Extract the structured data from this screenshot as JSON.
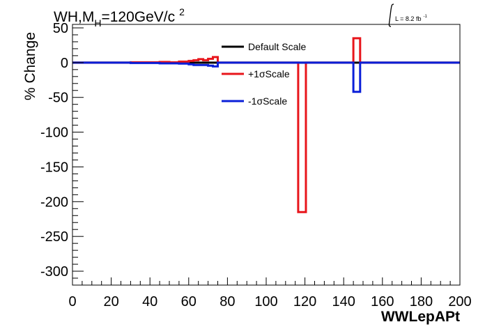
{
  "chart_data": {
    "type": "line",
    "title": "WH,M",
    "title_sub": "H",
    "title_tail": "=120GeV/c",
    "title_sup": "2",
    "lumi_label": "L = 8.2 fb",
    "lumi_sup": "-1",
    "xlabel": "WWLepAPt",
    "ylabel": "% Change",
    "xlim": [
      0,
      200
    ],
    "ylim": [
      -320,
      55
    ],
    "x_ticks": [
      0,
      20,
      40,
      60,
      80,
      100,
      120,
      140,
      160,
      180,
      200
    ],
    "y_ticks": [
      50,
      0,
      -50,
      -100,
      -150,
      -200,
      -250,
      -300
    ],
    "grid": false,
    "legend_position": "top-center",
    "series": [
      {
        "name": "Default Scale",
        "color": "#000000",
        "points": [
          [
            0,
            0
          ],
          [
            200,
            0
          ]
        ]
      },
      {
        "name": "+1σScale",
        "color": "#e8151b",
        "points": [
          [
            0,
            0
          ],
          [
            30,
            0
          ],
          [
            30,
            0.5
          ],
          [
            45,
            0.5
          ],
          [
            45,
            1
          ],
          [
            50,
            1
          ],
          [
            50,
            0.5
          ],
          [
            55,
            0.5
          ],
          [
            55,
            1.5
          ],
          [
            60,
            1.5
          ],
          [
            60,
            2.5
          ],
          [
            62.5,
            2.5
          ],
          [
            62.5,
            3.5
          ],
          [
            65,
            3.5
          ],
          [
            65,
            5
          ],
          [
            67.5,
            5
          ],
          [
            67.5,
            3.5
          ],
          [
            70,
            3.5
          ],
          [
            70,
            5.5
          ],
          [
            72.5,
            5.5
          ],
          [
            72.5,
            8
          ],
          [
            75,
            8
          ],
          [
            75,
            0
          ],
          [
            116.5,
            0
          ],
          [
            116.5,
            -215
          ],
          [
            120.5,
            -215
          ],
          [
            120.5,
            0
          ],
          [
            137.5,
            0
          ],
          [
            145,
            0
          ],
          [
            145,
            35
          ],
          [
            148.5,
            35
          ],
          [
            148.5,
            0
          ],
          [
            200,
            0
          ]
        ]
      },
      {
        "name": "-1σScale",
        "color": "#0a1fd8",
        "points": [
          [
            0,
            0
          ],
          [
            30,
            0
          ],
          [
            30,
            -0.5
          ],
          [
            45,
            -0.5
          ],
          [
            45,
            -1
          ],
          [
            55,
            -1
          ],
          [
            55,
            -1.5
          ],
          [
            60,
            -1.5
          ],
          [
            60,
            -2.5
          ],
          [
            62.5,
            -2.5
          ],
          [
            62.5,
            -3.5
          ],
          [
            70,
            -3.5
          ],
          [
            70,
            -4.5
          ],
          [
            72.5,
            -4.5
          ],
          [
            72.5,
            -5.5
          ],
          [
            75,
            -5.5
          ],
          [
            75,
            0
          ],
          [
            137.5,
            0
          ],
          [
            145,
            0
          ],
          [
            145,
            -42
          ],
          [
            148.5,
            -42
          ],
          [
            148.5,
            0
          ],
          [
            200,
            0
          ]
        ]
      }
    ]
  }
}
